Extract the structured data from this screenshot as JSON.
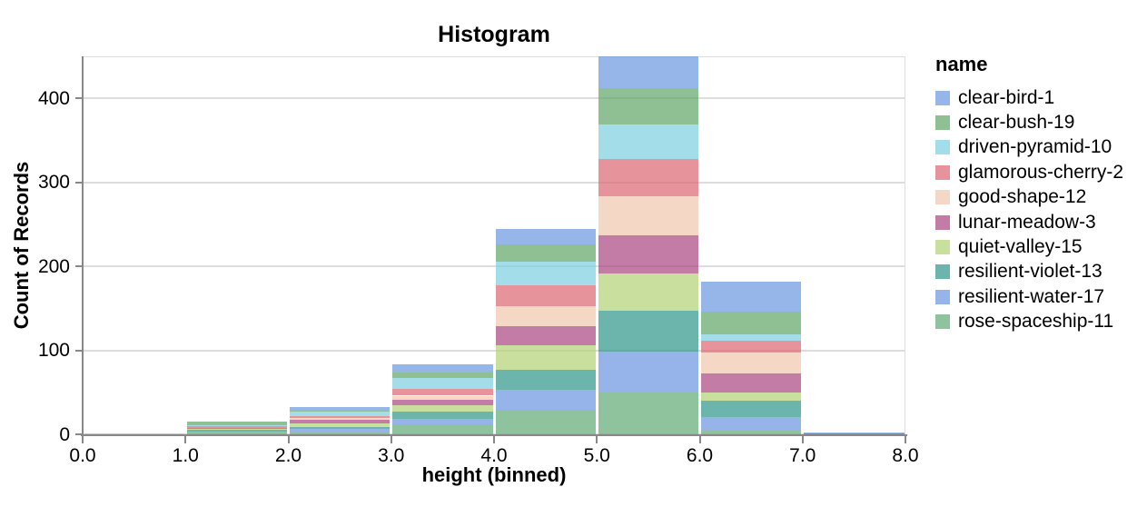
{
  "chart_data": {
    "type": "bar",
    "subtype": "stacked-histogram",
    "title": "Histogram",
    "xlabel": "height (binned)",
    "ylabel": "Count of Records",
    "legend_title": "name",
    "legend_position": "right",
    "grid": true,
    "xlim": [
      0,
      8
    ],
    "ylim": [
      0,
      450
    ],
    "bin_edges": [
      0,
      1,
      2,
      3,
      4,
      5,
      6,
      7,
      8
    ],
    "x_tick_labels": [
      "0.0",
      "1.0",
      "2.0",
      "3.0",
      "4.0",
      "5.0",
      "6.0",
      "7.0",
      "8.0"
    ],
    "y_tick_values": [
      0,
      100,
      200,
      300,
      400
    ],
    "y_tick_labels": [
      "0",
      "100",
      "200",
      "300",
      "400"
    ],
    "bin_totals": [
      1,
      15,
      33,
      83,
      244,
      450,
      182,
      2
    ],
    "bar_fill_opacity": 0.7,
    "stack_note": "first series renders on top of stack",
    "series": [
      {
        "name": "clear-bird-1",
        "color": "#6a97e0",
        "counts": [
          0,
          0,
          5,
          9,
          18,
          38,
          36,
          1
        ]
      },
      {
        "name": "clear-bush-19",
        "color": "#5fa566",
        "counts": [
          0,
          4,
          1,
          7,
          20,
          43,
          27,
          0
        ]
      },
      {
        "name": "driven-pyramid-10",
        "color": "#7ccee0",
        "counts": [
          0,
          1,
          5,
          13,
          29,
          41,
          8,
          0
        ]
      },
      {
        "name": "glamorous-cherry-2",
        "color": "#db6570",
        "counts": [
          0,
          2,
          3,
          8,
          24,
          45,
          14,
          0
        ]
      },
      {
        "name": "good-shape-12",
        "color": "#efc6ab",
        "counts": [
          0,
          0,
          2,
          5,
          24,
          46,
          24,
          0
        ]
      },
      {
        "name": "lunar-meadow-3",
        "color": "#a84480",
        "counts": [
          0,
          1,
          4,
          6,
          23,
          45,
          23,
          1
        ]
      },
      {
        "name": "quiet-valley-15",
        "color": "#b0d174",
        "counts": [
          1,
          2,
          4,
          8,
          29,
          45,
          10,
          0
        ]
      },
      {
        "name": "resilient-violet-13",
        "color": "#2d958a",
        "counts": [
          0,
          2,
          3,
          9,
          24,
          49,
          19,
          0
        ]
      },
      {
        "name": "resilient-water-17",
        "color": "#6a94e1",
        "counts": [
          0,
          1,
          3,
          6,
          24,
          48,
          17,
          0
        ]
      },
      {
        "name": "rose-spaceship-11",
        "color": "#5ea974",
        "counts": [
          0,
          2,
          3,
          12,
          29,
          50,
          4,
          0
        ]
      }
    ]
  },
  "style_colors": {
    "axis_line": "#888888",
    "gridline": "#dddddd",
    "view_border": "#dddddd",
    "text": "#000000",
    "background": "#ffffff"
  }
}
